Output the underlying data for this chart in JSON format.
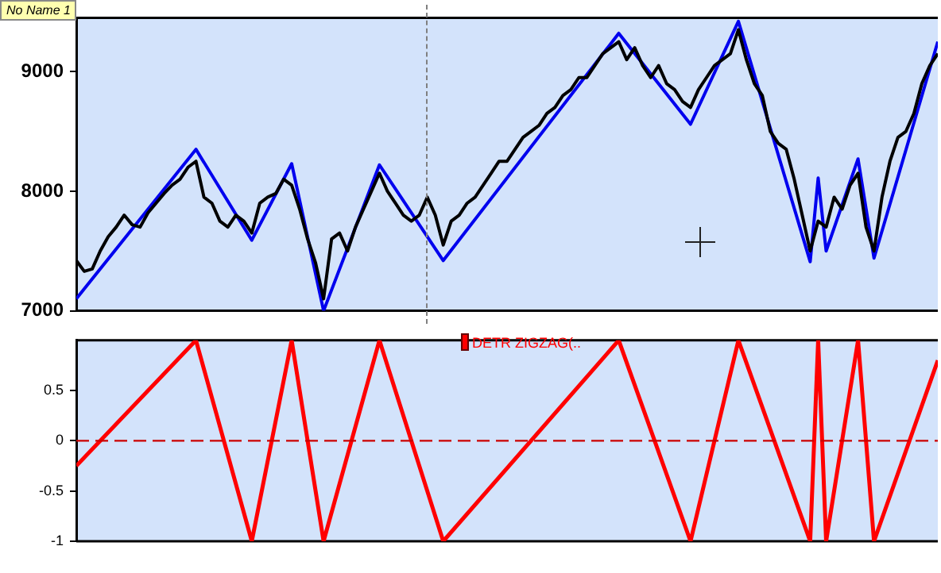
{
  "chart_data": [
    {
      "type": "line",
      "annotations": [
        "No Name 1"
      ],
      "tick_labels": "y",
      "legend": false,
      "grid": false,
      "marker": "none",
      "line_style": "solid",
      "categories": [
        null,
        null,
        null,
        null,
        null,
        null,
        null,
        null,
        null,
        null,
        null,
        null,
        null,
        null,
        null,
        null,
        null,
        null,
        null,
        null,
        null,
        null,
        null,
        null,
        null,
        null,
        null,
        null,
        null,
        null,
        null,
        null,
        null,
        null,
        null,
        null,
        null,
        null,
        null,
        null,
        null,
        null,
        null,
        null,
        null,
        null,
        null,
        null,
        null,
        null,
        null,
        null,
        null,
        null,
        null,
        null,
        null,
        null,
        null,
        null,
        null,
        null,
        null,
        null,
        null,
        null,
        null,
        null,
        null,
        null,
        null,
        null,
        null,
        null,
        null,
        null,
        null,
        null,
        null,
        null,
        null,
        null,
        null,
        null,
        null,
        null,
        null,
        null,
        null,
        null,
        null,
        null,
        null,
        null,
        null,
        null,
        null,
        null,
        null,
        null,
        null,
        null,
        null,
        null,
        null,
        null,
        null,
        null,
        null
      ],
      "ylim": [
        7000,
        9450
      ],
      "yticks": [
        7000,
        8000,
        9000
      ],
      "series": [
        {
          "color": "#000000",
          "values": [
            7420,
            7330,
            7350,
            7500,
            7620,
            7700,
            7800,
            7720,
            7700,
            7820,
            7900,
            7980,
            8050,
            8100,
            8200,
            8250,
            7950,
            7900,
            7750,
            7700,
            7800,
            7750,
            7650,
            7900,
            7950,
            7980,
            8100,
            8050,
            7850,
            7600,
            7400,
            7100,
            7600,
            7650,
            7500,
            7700,
            7850,
            8000,
            8150,
            8000,
            7900,
            7800,
            7750,
            7800,
            7950,
            7800,
            7550,
            7750,
            7800,
            7900,
            7950,
            8050,
            8150,
            8250,
            8250,
            8350,
            8450,
            8500,
            8550,
            8650,
            8700,
            8800,
            8850,
            8950,
            8950,
            9050,
            9150,
            9200,
            9250,
            9100,
            9200,
            9050,
            8950,
            9050,
            8900,
            8850,
            8750,
            8700,
            8850,
            8950,
            9050,
            9100,
            9150,
            9350,
            9100,
            8900,
            8800,
            8500,
            8400,
            8350,
            8100,
            7800,
            7500,
            7750,
            7700,
            7950,
            7850,
            8050,
            8150,
            7700,
            7500,
            7950,
            8250,
            8450,
            8500,
            8650,
            8900,
            9050,
            9150
          ]
        },
        {
          "color": "#0000ee",
          "values": [
            7100,
            null,
            null,
            null,
            null,
            null,
            null,
            null,
            null,
            null,
            null,
            null,
            null,
            null,
            null,
            8350,
            null,
            null,
            null,
            null,
            null,
            null,
            7590,
            null,
            null,
            null,
            null,
            8230,
            null,
            null,
            null,
            7000,
            null,
            null,
            null,
            null,
            null,
            null,
            8220,
            null,
            null,
            null,
            null,
            null,
            null,
            null,
            7420,
            null,
            null,
            null,
            null,
            null,
            null,
            null,
            null,
            null,
            null,
            null,
            null,
            null,
            null,
            null,
            null,
            null,
            null,
            null,
            null,
            null,
            9320,
            null,
            null,
            null,
            null,
            null,
            null,
            null,
            null,
            8560,
            null,
            null,
            null,
            null,
            null,
            9420,
            null,
            null,
            null,
            null,
            null,
            null,
            null,
            null,
            7410,
            8110,
            7500,
            null,
            null,
            null,
            8270,
            null,
            7440,
            null,
            null,
            null,
            null,
            null,
            null,
            null,
            9250
          ]
        }
      ]
    },
    {
      "type": "line",
      "tick_labels": "y",
      "legend": "top",
      "grid": false,
      "marker": "none",
      "line_style": "solid",
      "categories": [
        null,
        null,
        null,
        null,
        null,
        null,
        null,
        null,
        null,
        null,
        null,
        null,
        null,
        null,
        null,
        null,
        null,
        null,
        null,
        null,
        null,
        null,
        null,
        null,
        null,
        null,
        null,
        null,
        null,
        null,
        null,
        null,
        null,
        null,
        null,
        null,
        null,
        null,
        null,
        null,
        null,
        null,
        null,
        null,
        null,
        null,
        null,
        null,
        null,
        null,
        null,
        null,
        null,
        null,
        null,
        null,
        null,
        null,
        null,
        null,
        null,
        null,
        null,
        null,
        null,
        null,
        null,
        null,
        null,
        null,
        null,
        null,
        null,
        null,
        null,
        null,
        null,
        null,
        null,
        null,
        null,
        null,
        null,
        null,
        null,
        null,
        null,
        null,
        null,
        null,
        null,
        null,
        null,
        null,
        null,
        null,
        null,
        null,
        null,
        null,
        null,
        null,
        null,
        null,
        null,
        null,
        null,
        null,
        null
      ],
      "ylim": [
        -1,
        1
      ],
      "yticks": [
        {
          "value": -1,
          "label": "-1"
        },
        {
          "value": -0.5,
          "label": "-0.5"
        },
        {
          "value": 0,
          "label": "0"
        },
        {
          "value": 0.5,
          "label": "0.5"
        }
      ],
      "ref_lines": [
        {
          "axis": "y",
          "value": 0,
          "color": "#cc0000",
          "line_style": "dashed"
        }
      ],
      "series": [
        {
          "name": "DETR ZIGZAG(..",
          "color": "#ff0000",
          "values": [
            -0.25,
            null,
            null,
            null,
            null,
            null,
            null,
            null,
            null,
            null,
            null,
            null,
            null,
            null,
            null,
            1,
            null,
            null,
            null,
            null,
            null,
            null,
            -1,
            null,
            null,
            null,
            null,
            1,
            null,
            null,
            null,
            -1,
            null,
            null,
            null,
            null,
            null,
            null,
            1,
            null,
            null,
            null,
            null,
            null,
            null,
            null,
            -1,
            null,
            null,
            null,
            null,
            null,
            null,
            null,
            null,
            null,
            null,
            null,
            null,
            null,
            null,
            null,
            null,
            null,
            null,
            null,
            null,
            null,
            1,
            null,
            null,
            null,
            null,
            null,
            null,
            null,
            null,
            -1,
            null,
            null,
            null,
            null,
            null,
            1,
            null,
            null,
            null,
            null,
            null,
            null,
            null,
            null,
            -1,
            1,
            -1,
            null,
            null,
            null,
            1,
            null,
            -1,
            null,
            null,
            null,
            null,
            null,
            null,
            null,
            0.8
          ]
        }
      ]
    }
  ]
}
